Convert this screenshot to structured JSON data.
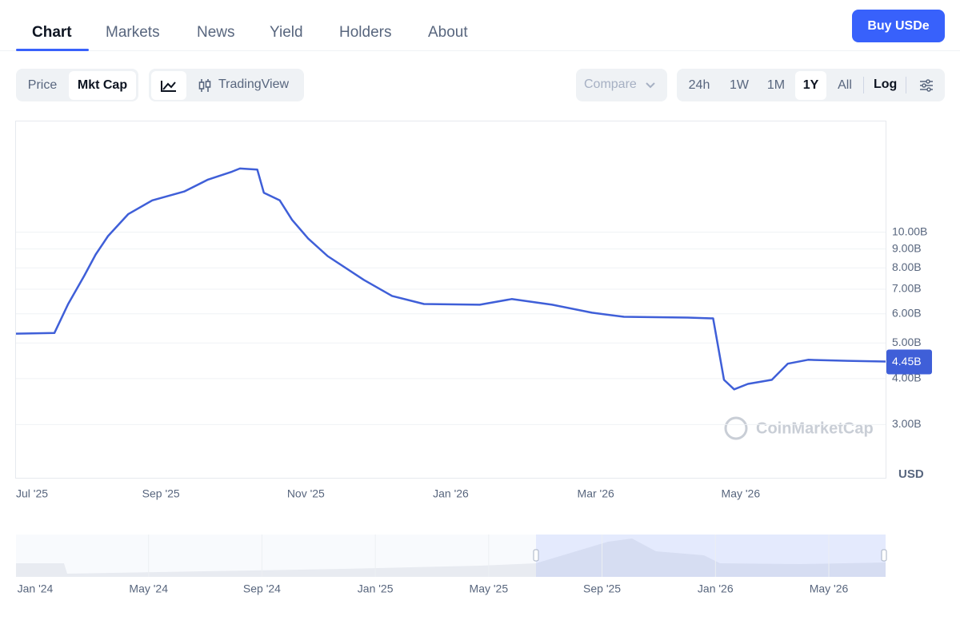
{
  "tabs": [
    "Chart",
    "Markets",
    "News",
    "Yield",
    "Holders",
    "About"
  ],
  "active_tab": "Chart",
  "buy_button": "Buy USDe",
  "metric_toggle": [
    "Price",
    "Mkt Cap"
  ],
  "active_metric": "Mkt Cap",
  "tradingview": "TradingView",
  "compare": "Compare",
  "ranges": [
    "24h",
    "1W",
    "1M",
    "1Y",
    "All"
  ],
  "active_range": "1Y",
  "log_toggle": "Log",
  "chart_data": {
    "type": "line",
    "log_scale": true,
    "grid": true,
    "color": "#3f5fd8",
    "x": [
      0,
      0.53,
      0.72,
      0.94,
      1.1,
      1.27,
      1.55,
      1.88,
      2.32,
      2.65,
      2.98,
      3.09,
      3.33,
      3.42,
      3.64,
      3.81,
      4.03,
      4.3,
      4.8,
      5.19,
      5.63,
      6.4,
      6.84,
      7.4,
      7.95,
      8.39,
      9.27,
      9.62,
      9.77,
      9.91,
      10.1,
      10.43,
      10.65,
      10.93,
      11.48,
      12
    ],
    "values": [
      5.3,
      5.32,
      6.38,
      7.6,
      8.7,
      9.76,
      11.2,
      12.2,
      12.9,
      13.9,
      14.6,
      14.9,
      14.8,
      12.8,
      12.2,
      10.8,
      9.62,
      8.61,
      7.42,
      6.71,
      6.38,
      6.35,
      6.58,
      6.35,
      6.04,
      5.89,
      5.86,
      5.83,
      3.97,
      3.74,
      3.87,
      3.97,
      4.39,
      4.5,
      4.47,
      4.45
    ],
    "value_labels": [
      null,
      null,
      null,
      null,
      null,
      null,
      null,
      null,
      null,
      null,
      null,
      null,
      null,
      null,
      null,
      null,
      null,
      null,
      null,
      null,
      null,
      null,
      null,
      null,
      null,
      null,
      null,
      null,
      null,
      null,
      null,
      null,
      null,
      null,
      null,
      "4.45B"
    ],
    "xlim": [
      0,
      12
    ],
    "xticks": [
      {
        "value": 0,
        "label": "Jul '25"
      },
      {
        "value": 2,
        "label": "Sep '25"
      },
      {
        "value": 4,
        "label": "Nov '25"
      },
      {
        "value": 6,
        "label": "Jan '26"
      },
      {
        "value": 8,
        "label": "Mar '26"
      },
      {
        "value": 10,
        "label": "May '26"
      }
    ],
    "ylim": [
      2.15,
      20
    ],
    "yticks": [
      {
        "value": 3,
        "label": "3.00B"
      },
      {
        "value": 4,
        "label": "4.00B"
      },
      {
        "value": 5,
        "label": "5.00B"
      },
      {
        "value": 6,
        "label": "6.00B"
      },
      {
        "value": 7,
        "label": "7.00B"
      },
      {
        "value": 8,
        "label": "8.00B"
      },
      {
        "value": 9,
        "label": "9.00B"
      },
      {
        "value": 10,
        "label": "10.00B"
      }
    ],
    "y_unit": "USD",
    "watermark": "CoinMarketCap"
  },
  "navigator": {
    "labels": [
      "Jan '24",
      "May '24",
      "Sep '24",
      "Jan '25",
      "May '25",
      "Sep '25",
      "Jan '26",
      "May '26"
    ]
  }
}
